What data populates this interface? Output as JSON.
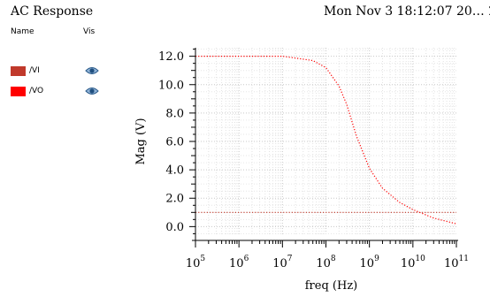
{
  "header": {
    "title": "AC Response",
    "timestamp": "Mon Nov 3 18:12:07 20…  2"
  },
  "legend": {
    "name_header": "Name",
    "vis_header": "Vis",
    "items": [
      {
        "label": "/VI",
        "color": "#c0392b",
        "visible_icon": "eye-icon"
      },
      {
        "label": "/VO",
        "color": "#ff0000",
        "visible_icon": "eye-icon"
      }
    ]
  },
  "chart_data": {
    "type": "line",
    "xlabel": "freq (Hz)",
    "ylabel": "Mag (V)",
    "xscale": "log",
    "xlim": [
      100000,
      100000000000
    ],
    "ylim": [
      -0.6,
      12.6
    ],
    "xticks": [
      {
        "value": 100000,
        "base": "10",
        "exp": "5"
      },
      {
        "value": 1000000,
        "base": "10",
        "exp": "6"
      },
      {
        "value": 10000000,
        "base": "10",
        "exp": "7"
      },
      {
        "value": 100000000,
        "base": "10",
        "exp": "8"
      },
      {
        "value": 1000000000,
        "base": "10",
        "exp": "9"
      },
      {
        "value": 10000000000,
        "base": "10",
        "exp": "10"
      },
      {
        "value": 100000000000,
        "base": "10",
        "exp": "11"
      }
    ],
    "yticks": [
      {
        "value": 0,
        "label": "0.0"
      },
      {
        "value": 2,
        "label": "2.0"
      },
      {
        "value": 4,
        "label": "4.0"
      },
      {
        "value": 6,
        "label": "6.0"
      },
      {
        "value": 8,
        "label": "8.0"
      },
      {
        "value": 10,
        "label": "10.0"
      },
      {
        "value": 12,
        "label": "12.0"
      }
    ],
    "grid": true,
    "series": [
      {
        "name": "/VI",
        "color": "#c0392b",
        "x": [
          100000,
          100000000000
        ],
        "y": [
          1.0,
          1.0
        ]
      },
      {
        "name": "/VO",
        "color": "#ff0000",
        "x": [
          100000,
          1000000,
          10000000,
          50000000,
          100000000,
          200000000,
          300000000,
          500000000,
          1000000000,
          2000000000,
          5000000000,
          10000000000,
          30000000000,
          100000000000
        ],
        "y": [
          12.0,
          12.0,
          12.0,
          11.7,
          11.2,
          9.9,
          8.6,
          6.4,
          4.1,
          2.7,
          1.7,
          1.2,
          0.6,
          0.2
        ]
      }
    ]
  }
}
